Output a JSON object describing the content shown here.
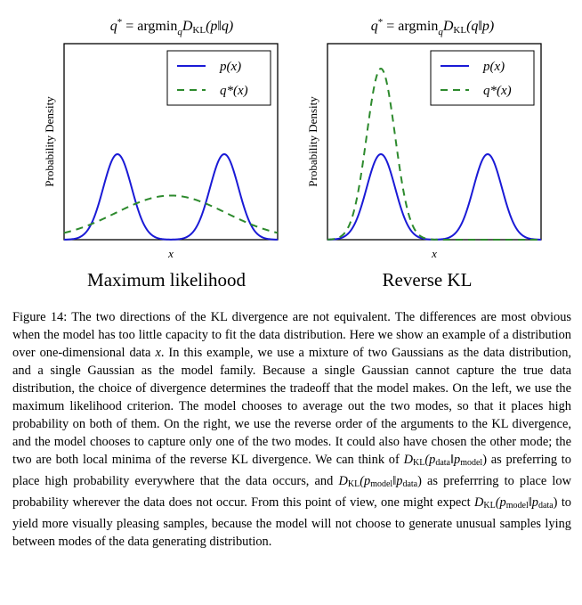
{
  "figure": {
    "panels": [
      {
        "id": "left",
        "title_prefix": "q",
        "title_star": "*",
        "title_eq": " = argmin",
        "title_sub": "q",
        "title_rest_fn": "D",
        "title_rest_kl": "KL",
        "title_args": "(p‖q)",
        "ylabel": "Probability Density",
        "xlabel": "x",
        "name": "Maximum likelihood",
        "legend_legend1": "p(x)",
        "legend_legend2": "q*(x)",
        "legend_position": "top-right"
      },
      {
        "id": "right",
        "title_prefix": "q",
        "title_star": "*",
        "title_eq": " = argmin",
        "title_sub": "q",
        "title_rest_fn": "D",
        "title_rest_kl": "KL",
        "title_args": "(q‖p)",
        "ylabel": "Probability Density",
        "xlabel": "x",
        "name": "Reverse KL",
        "legend_legend1": "p(x)",
        "legend_legend2": "q*(x)",
        "legend_position": "top-right"
      }
    ],
    "colors": {
      "p": "#1a1ad6",
      "q": "#2d8a2d"
    }
  },
  "chart_data": [
    {
      "type": "line",
      "xlabel": "x",
      "ylabel": "Probability Density",
      "xlim": [
        -6,
        6
      ],
      "ylim": [
        0,
        1.1
      ],
      "series": [
        {
          "name": "p(x)",
          "style": "solid",
          "components": [
            {
              "weight": 0.5,
              "mean": -3,
              "std": 0.8
            },
            {
              "weight": 0.5,
              "mean": 3,
              "std": 0.8
            }
          ]
        },
        {
          "name": "q*(x)",
          "style": "dashed",
          "components": [
            {
              "weight": 1.0,
              "mean": 0,
              "std": 3.1
            }
          ]
        }
      ]
    },
    {
      "type": "line",
      "xlabel": "x",
      "ylabel": "Probability Density",
      "xlim": [
        -6,
        6
      ],
      "ylim": [
        0,
        1.1
      ],
      "series": [
        {
          "name": "p(x)",
          "style": "solid",
          "components": [
            {
              "weight": 0.5,
              "mean": -3,
              "std": 0.8
            },
            {
              "weight": 0.5,
              "mean": 3,
              "std": 0.8
            }
          ]
        },
        {
          "name": "q*(x)",
          "style": "dashed",
          "components": [
            {
              "weight": 1.0,
              "mean": -3,
              "std": 0.8
            }
          ]
        }
      ]
    }
  ],
  "caption": {
    "s1": "Figure 14: The two directions of the KL divergence are not equivalent. The differences are most obvious when the model has too little capacity to fit the data distribution. Here we show an example of a distribution over one-dimensional data ",
    "x": "x",
    "s2": ". In this example, we use a mixture of two Gaussians as the data distribution, and a single Gaussian as the model family. Because a single Gaussian cannot capture the true data distribution, the choice of divergence determines the tradeoff that the model makes. On the left, we use the maximum likelihood criterion. The model chooses to average out the two modes, so that it places high probability on both of them. On the right, we use the reverse order of the arguments to the KL divergence, and the model chooses to capture only one of the two modes. It could also have chosen the other mode; the two are both local minima of the reverse KL divergence. We can think of ",
    "d1": "D",
    "kl1": "KL",
    "a1": "(p",
    "a1s": "data",
    "a1m": "‖p",
    "a1e": "model",
    "a1c": ")",
    "s3": " as preferring to place high probability everywhere that the data occurs, and ",
    "d2": "D",
    "kl2": "KL",
    "a2": "(p",
    "a2s": "model",
    "a2m": "‖p",
    "a2e": "data",
    "a2c": ")",
    "s4": " as preferrring to place low probability wherever the data does not occur. From this point of view, one might expect ",
    "d3": "D",
    "kl3": "KL",
    "a3": "(p",
    "a3s": "model",
    "a3m": "‖p",
    "a3e": "data",
    "a3c": ")",
    "s5": " to yield more visually pleasing samples, because the model will not choose to generate unusual samples lying between modes of the data generating distribution."
  }
}
